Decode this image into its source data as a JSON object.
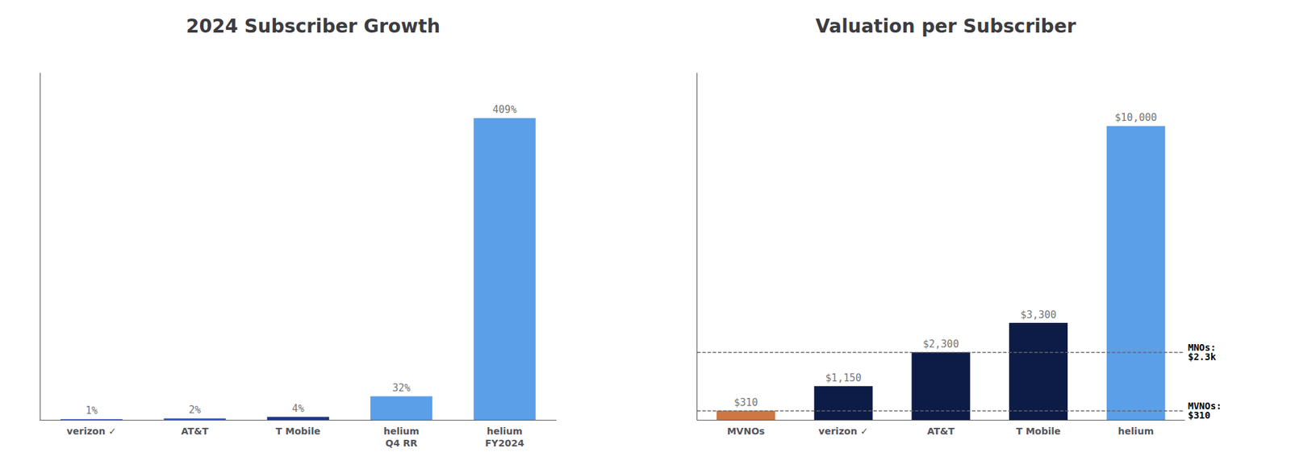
{
  "chart_data": [
    {
      "type": "bar",
      "title": "2024 Subscriber Growth",
      "categories": [
        "verizon ✓",
        "AT&T",
        "T Mobile",
        "helium\nQ4 RR",
        "helium\nFY2024"
      ],
      "values": [
        1,
        2,
        4,
        32,
        409
      ],
      "value_labels": [
        "1%",
        "2%",
        "4%",
        "32%",
        "409%"
      ],
      "colors": [
        "#3a5bc7",
        "#3a5bc7",
        "#1a3a8a",
        "#5B9FE8",
        "#5B9FE8"
      ],
      "ylim": [
        0,
        470
      ],
      "data_labels": true,
      "tick_labels": "x",
      "grid": false
    },
    {
      "type": "bar",
      "title": "Valuation per Subscriber",
      "categories": [
        "MVNOs",
        "verizon ✓",
        "AT&T",
        "T Mobile",
        "helium"
      ],
      "values": [
        310,
        1150,
        2300,
        3300,
        10000
      ],
      "value_labels": [
        "$310",
        "$1,150",
        "$2,300",
        "$3,300",
        "$10,000"
      ],
      "colors": [
        "#CC7744",
        "#0D1B47",
        "#0D1B47",
        "#0D1B47",
        "#5B9FE8"
      ],
      "ylim": [
        0,
        11800
      ],
      "data_labels": true,
      "tick_labels": "x",
      "grid": false,
      "annotations": [
        {
          "y": 2300,
          "text": "MNOs:\n$2.3k"
        },
        {
          "y": 310,
          "text": "MVNOs:\n$310"
        }
      ]
    }
  ]
}
